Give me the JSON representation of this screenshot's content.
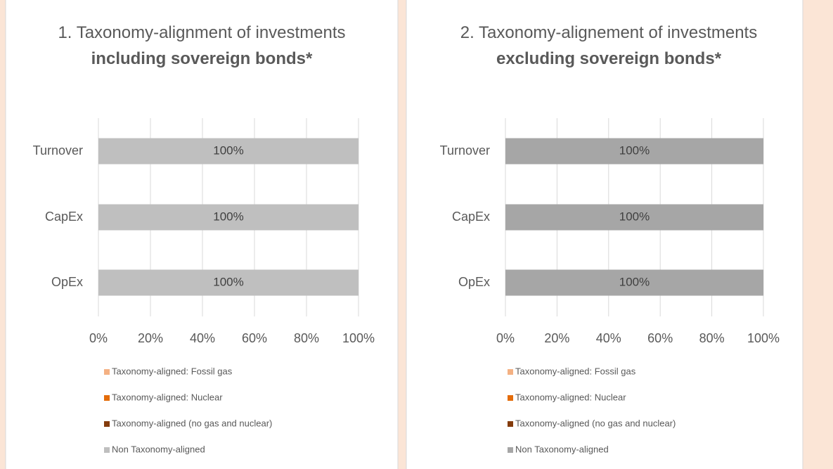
{
  "chart_data": [
    {
      "type": "bar",
      "orientation": "horizontal",
      "stacked": true,
      "title": "1. Taxonomy-alignment of investments",
      "title_emphasis": "including sovereign bonds*",
      "categories": [
        "Turnover",
        "CapEx",
        "OpEx"
      ],
      "series": [
        {
          "name": "Taxonomy-aligned: Fossil gas",
          "color": "#f4b183",
          "values": [
            0,
            0,
            0
          ]
        },
        {
          "name": "Taxonomy-aligned: Nuclear",
          "color": "#e46c0a",
          "values": [
            0,
            0,
            0
          ]
        },
        {
          "name": "Taxonomy-aligned (no gas and nuclear)",
          "color": "#843c0c",
          "values": [
            0,
            0,
            0
          ]
        },
        {
          "name": "Non Taxonomy-aligned",
          "color": "#bfbfbf",
          "values": [
            100,
            100,
            100
          ],
          "value_labels": [
            "100%",
            "100%",
            "100%"
          ]
        }
      ],
      "xlim": [
        0,
        100
      ],
      "xticks": [
        {
          "value": 0,
          "label": "0%"
        },
        {
          "value": 20,
          "label": "20%"
        },
        {
          "value": 40,
          "label": "40%"
        },
        {
          "value": 60,
          "label": "60%"
        },
        {
          "value": 80,
          "label": "80%"
        },
        {
          "value": 100,
          "label": "100%"
        }
      ],
      "grid": true,
      "legend": "bottom"
    },
    {
      "type": "bar",
      "orientation": "horizontal",
      "stacked": true,
      "title": "2. Taxonomy-alignement of investments",
      "title_emphasis": "excluding sovereign bonds*",
      "categories": [
        "Turnover",
        "CapEx",
        "OpEx"
      ],
      "series": [
        {
          "name": "Taxonomy-aligned: Fossil gas",
          "color": "#f4b183",
          "values": [
            0,
            0,
            0
          ]
        },
        {
          "name": "Taxonomy-aligned: Nuclear",
          "color": "#e46c0a",
          "values": [
            0,
            0,
            0
          ]
        },
        {
          "name": "Taxonomy-aligned (no gas and nuclear)",
          "color": "#843c0c",
          "values": [
            0,
            0,
            0
          ]
        },
        {
          "name": "Non Taxonomy-aligned",
          "color": "#a6a6a6",
          "values": [
            100,
            100,
            100
          ],
          "value_labels": [
            "100%",
            "100%",
            "100%"
          ]
        }
      ],
      "xlim": [
        0,
        100
      ],
      "xticks": [
        {
          "value": 0,
          "label": "0%"
        },
        {
          "value": 20,
          "label": "20%"
        },
        {
          "value": 40,
          "label": "40%"
        },
        {
          "value": 60,
          "label": "60%"
        },
        {
          "value": 80,
          "label": "80%"
        },
        {
          "value": 100,
          "label": "100%"
        }
      ],
      "grid": true,
      "legend": "bottom"
    }
  ]
}
